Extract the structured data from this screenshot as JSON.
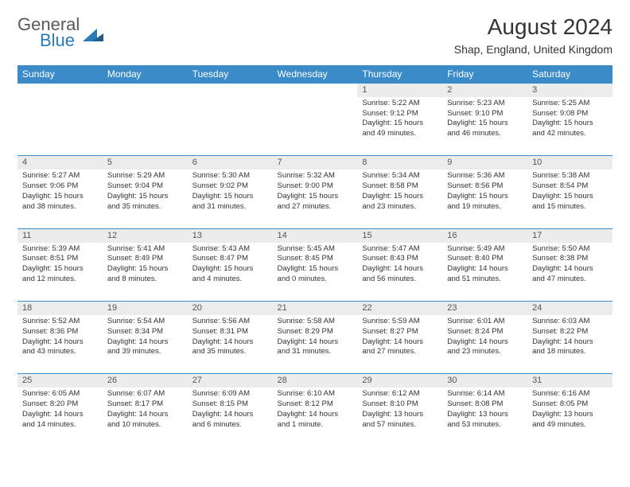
{
  "logo": {
    "general": "General",
    "blue": "Blue"
  },
  "title": "August 2024",
  "location": "Shap, England, United Kingdom",
  "colors": {
    "header_bg": "#3b8bc9",
    "header_text": "#ffffff",
    "daynum_bg": "#ececec",
    "row_divider": "#3b8bc9",
    "logo_gray": "#58595b",
    "logo_blue": "#2a7ab8"
  },
  "day_headers": [
    "Sunday",
    "Monday",
    "Tuesday",
    "Wednesday",
    "Thursday",
    "Friday",
    "Saturday"
  ],
  "weeks": [
    {
      "nums": [
        "",
        "",
        "",
        "",
        "1",
        "2",
        "3"
      ],
      "cells": [
        null,
        null,
        null,
        null,
        {
          "sunrise": "5:22 AM",
          "sunset": "9:12 PM",
          "daylight": "15 hours and 49 minutes."
        },
        {
          "sunrise": "5:23 AM",
          "sunset": "9:10 PM",
          "daylight": "15 hours and 46 minutes."
        },
        {
          "sunrise": "5:25 AM",
          "sunset": "9:08 PM",
          "daylight": "15 hours and 42 minutes."
        }
      ]
    },
    {
      "nums": [
        "4",
        "5",
        "6",
        "7",
        "8",
        "9",
        "10"
      ],
      "cells": [
        {
          "sunrise": "5:27 AM",
          "sunset": "9:06 PM",
          "daylight": "15 hours and 38 minutes."
        },
        {
          "sunrise": "5:29 AM",
          "sunset": "9:04 PM",
          "daylight": "15 hours and 35 minutes."
        },
        {
          "sunrise": "5:30 AM",
          "sunset": "9:02 PM",
          "daylight": "15 hours and 31 minutes."
        },
        {
          "sunrise": "5:32 AM",
          "sunset": "9:00 PM",
          "daylight": "15 hours and 27 minutes."
        },
        {
          "sunrise": "5:34 AM",
          "sunset": "8:58 PM",
          "daylight": "15 hours and 23 minutes."
        },
        {
          "sunrise": "5:36 AM",
          "sunset": "8:56 PM",
          "daylight": "15 hours and 19 minutes."
        },
        {
          "sunrise": "5:38 AM",
          "sunset": "8:54 PM",
          "daylight": "15 hours and 15 minutes."
        }
      ]
    },
    {
      "nums": [
        "11",
        "12",
        "13",
        "14",
        "15",
        "16",
        "17"
      ],
      "cells": [
        {
          "sunrise": "5:39 AM",
          "sunset": "8:51 PM",
          "daylight": "15 hours and 12 minutes."
        },
        {
          "sunrise": "5:41 AM",
          "sunset": "8:49 PM",
          "daylight": "15 hours and 8 minutes."
        },
        {
          "sunrise": "5:43 AM",
          "sunset": "8:47 PM",
          "daylight": "15 hours and 4 minutes."
        },
        {
          "sunrise": "5:45 AM",
          "sunset": "8:45 PM",
          "daylight": "15 hours and 0 minutes."
        },
        {
          "sunrise": "5:47 AM",
          "sunset": "8:43 PM",
          "daylight": "14 hours and 56 minutes."
        },
        {
          "sunrise": "5:49 AM",
          "sunset": "8:40 PM",
          "daylight": "14 hours and 51 minutes."
        },
        {
          "sunrise": "5:50 AM",
          "sunset": "8:38 PM",
          "daylight": "14 hours and 47 minutes."
        }
      ]
    },
    {
      "nums": [
        "18",
        "19",
        "20",
        "21",
        "22",
        "23",
        "24"
      ],
      "cells": [
        {
          "sunrise": "5:52 AM",
          "sunset": "8:36 PM",
          "daylight": "14 hours and 43 minutes."
        },
        {
          "sunrise": "5:54 AM",
          "sunset": "8:34 PM",
          "daylight": "14 hours and 39 minutes."
        },
        {
          "sunrise": "5:56 AM",
          "sunset": "8:31 PM",
          "daylight": "14 hours and 35 minutes."
        },
        {
          "sunrise": "5:58 AM",
          "sunset": "8:29 PM",
          "daylight": "14 hours and 31 minutes."
        },
        {
          "sunrise": "5:59 AM",
          "sunset": "8:27 PM",
          "daylight": "14 hours and 27 minutes."
        },
        {
          "sunrise": "6:01 AM",
          "sunset": "8:24 PM",
          "daylight": "14 hours and 23 minutes."
        },
        {
          "sunrise": "6:03 AM",
          "sunset": "8:22 PM",
          "daylight": "14 hours and 18 minutes."
        }
      ]
    },
    {
      "nums": [
        "25",
        "26",
        "27",
        "28",
        "29",
        "30",
        "31"
      ],
      "cells": [
        {
          "sunrise": "6:05 AM",
          "sunset": "8:20 PM",
          "daylight": "14 hours and 14 minutes."
        },
        {
          "sunrise": "6:07 AM",
          "sunset": "8:17 PM",
          "daylight": "14 hours and 10 minutes."
        },
        {
          "sunrise": "6:09 AM",
          "sunset": "8:15 PM",
          "daylight": "14 hours and 6 minutes."
        },
        {
          "sunrise": "6:10 AM",
          "sunset": "8:12 PM",
          "daylight": "14 hours and 1 minute."
        },
        {
          "sunrise": "6:12 AM",
          "sunset": "8:10 PM",
          "daylight": "13 hours and 57 minutes."
        },
        {
          "sunrise": "6:14 AM",
          "sunset": "8:08 PM",
          "daylight": "13 hours and 53 minutes."
        },
        {
          "sunrise": "6:16 AM",
          "sunset": "8:05 PM",
          "daylight": "13 hours and 49 minutes."
        }
      ]
    }
  ],
  "labels": {
    "sunrise": "Sunrise:",
    "sunset": "Sunset:",
    "daylight": "Daylight:"
  }
}
